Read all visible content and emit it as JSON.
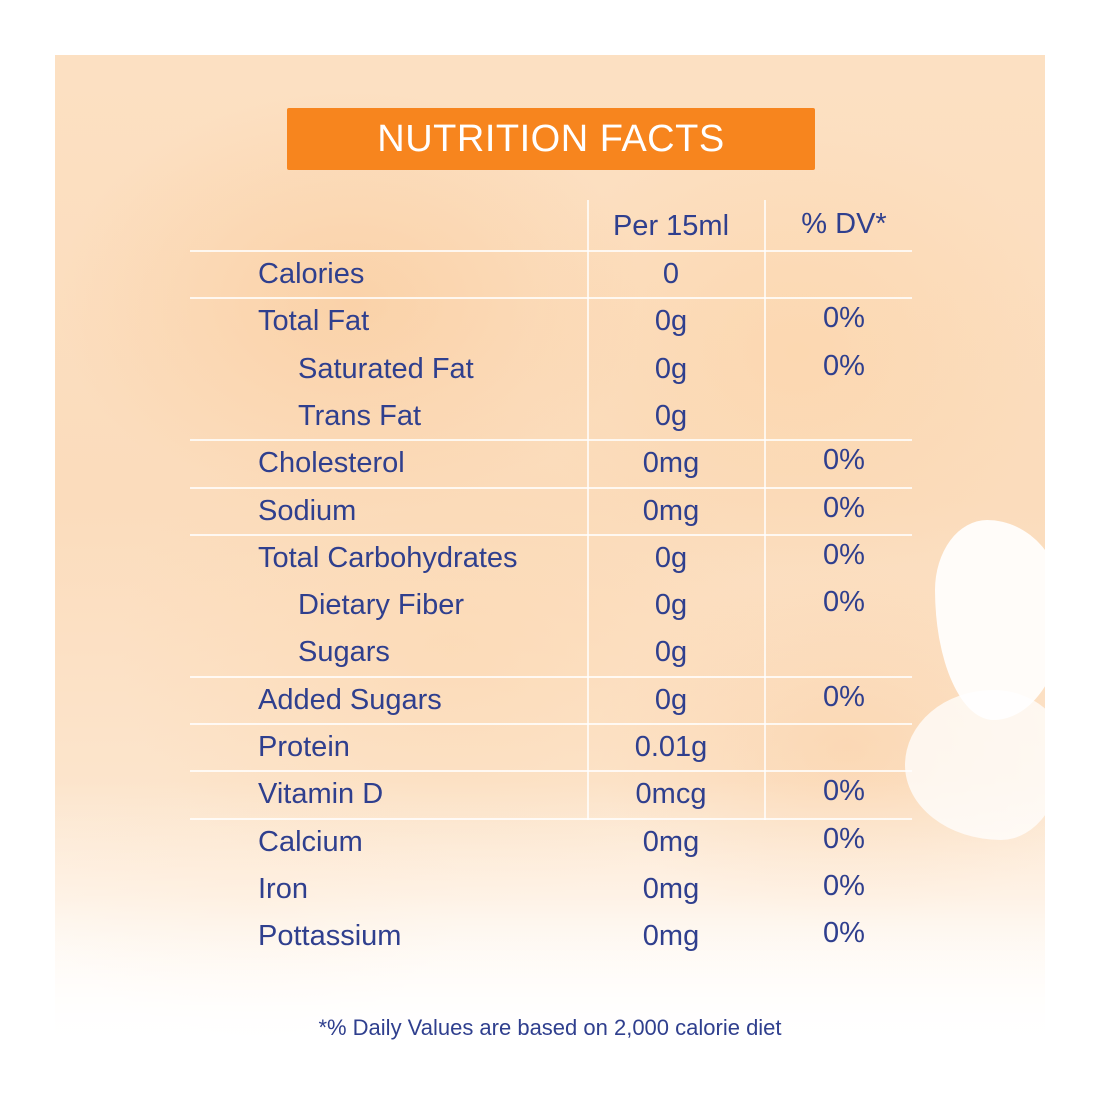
{
  "title": "NUTRITION FACTS",
  "columns": {
    "amount": "Per 15ml",
    "dv": "% DV*"
  },
  "rows": [
    {
      "name": "Calories",
      "amount": "0",
      "dv": "",
      "indent": false
    },
    {
      "name": "Total Fat",
      "amount": "0g",
      "dv": "0%",
      "indent": false
    },
    {
      "name": "Saturated Fat",
      "amount": "0g",
      "dv": "0%",
      "indent": true
    },
    {
      "name": "Trans Fat",
      "amount": "0g",
      "dv": "",
      "indent": true
    },
    {
      "name": "Cholesterol",
      "amount": "0mg",
      "dv": "0%",
      "indent": false
    },
    {
      "name": "Sodium",
      "amount": "0mg",
      "dv": "0%",
      "indent": false
    },
    {
      "name": "Total Carbohydrates",
      "amount": "0g",
      "dv": "0%",
      "indent": false
    },
    {
      "name": "Dietary Fiber",
      "amount": "0g",
      "dv": "0%",
      "indent": true
    },
    {
      "name": "Sugars",
      "amount": "0g",
      "dv": "",
      "indent": true
    },
    {
      "name": "Added Sugars",
      "amount": "0g",
      "dv": "0%",
      "indent": false
    },
    {
      "name": "Protein",
      "amount": "0.01g",
      "dv": "",
      "indent": false
    },
    {
      "name": "Vitamin D",
      "amount": "0mcg",
      "dv": "0%",
      "indent": false
    },
    {
      "name": "Calcium",
      "amount": "0mg",
      "dv": "0%",
      "indent": false
    },
    {
      "name": "Iron",
      "amount": "0mg",
      "dv": "0%",
      "indent": false
    },
    {
      "name": "Pottassium",
      "amount": "0mg",
      "dv": "0%",
      "indent": false
    }
  ],
  "footnote": "*% Daily Values are based on 2,000 calorie diet",
  "colors": {
    "accent": "#f7851e",
    "text": "#2f3f8e",
    "background_wash": "#fbdcbc"
  }
}
